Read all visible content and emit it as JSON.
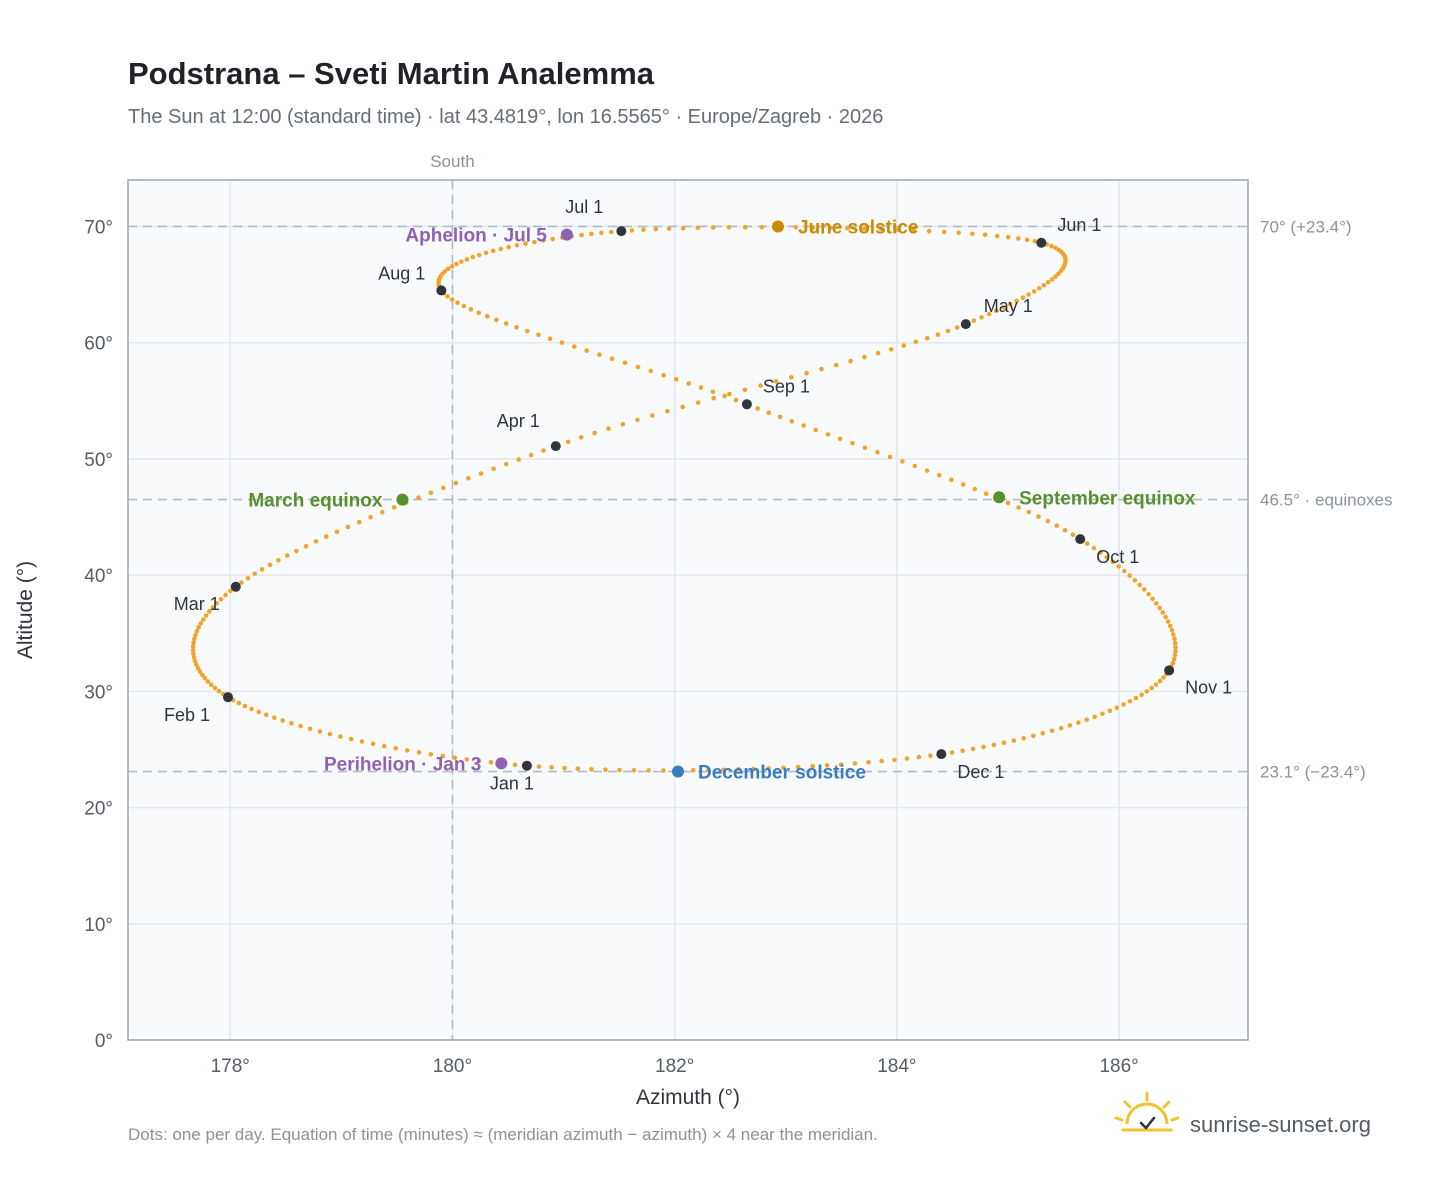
{
  "chart_data": {
    "type": "scatter",
    "title": "Podstrana – Sveti Martin Analemma",
    "subtitle": "The Sun at 12:00 (standard time) · lat 43.4819°, lon 16.5565° · Europe/Zagreb · 2026",
    "xlabel": "Azimuth (°)",
    "ylabel": "Altitude (°)",
    "xlim": [
      177.08,
      187.16
    ],
    "ylim": [
      0,
      74
    ],
    "xticks": [
      178,
      180,
      182,
      184,
      186
    ],
    "yticks": [
      0,
      10,
      20,
      30,
      40,
      50,
      60,
      70
    ],
    "x_tick_suffix": "°",
    "y_tick_suffix": "°",
    "grid": true,
    "meridian": {
      "azimuth": 180,
      "label": "South"
    },
    "reference_lines": [
      {
        "altitude": 70.0,
        "label": "70° (+23.4°)"
      },
      {
        "altitude": 46.5,
        "label": "46.5° · equinoxes"
      },
      {
        "altitude": 23.1,
        "label": "23.1° (−23.4°)"
      }
    ],
    "series": [
      {
        "points": [
          {
            "date": "Jan 1",
            "x": 180.67,
            "y": 23.6
          },
          {
            "date": "Feb 1",
            "x": 177.98,
            "y": 29.5
          },
          {
            "date": "Mar 1",
            "x": 178.05,
            "y": 39.0
          },
          {
            "date": "Apr 1",
            "x": 180.93,
            "y": 51.1
          },
          {
            "date": "May 1",
            "x": 184.62,
            "y": 61.6
          },
          {
            "date": "Jun 1",
            "x": 185.3,
            "y": 68.6
          },
          {
            "date": "Jul 1",
            "x": 181.52,
            "y": 69.6
          },
          {
            "date": "Aug 1",
            "x": 179.9,
            "y": 64.5
          },
          {
            "date": "Sep 1",
            "x": 182.65,
            "y": 54.7
          },
          {
            "date": "Oct 1",
            "x": 185.65,
            "y": 43.1
          },
          {
            "date": "Nov 1",
            "x": 186.45,
            "y": 31.8
          },
          {
            "date": "Dec 1",
            "x": 184.4,
            "y": 24.6
          }
        ]
      }
    ],
    "events": [
      {
        "label": "June solstice",
        "x": 182.93,
        "y": 70.0,
        "color": "#cc8a00"
      },
      {
        "label": "December solstice",
        "x": 182.03,
        "y": 23.1,
        "color": "#3a7bbf"
      },
      {
        "label": "March equinox",
        "x": 179.55,
        "y": 46.5,
        "color": "#5a8f2e"
      },
      {
        "label": "September equinox",
        "x": 184.92,
        "y": 46.7,
        "color": "#5a8f2e"
      },
      {
        "label": "Aphelion · Jul 5",
        "x": 181.03,
        "y": 69.3,
        "color": "#8e63b5"
      },
      {
        "label": "Perihelion · Jan 3",
        "x": 180.44,
        "y": 23.8,
        "color": "#8e63b5"
      }
    ],
    "curve_color": "#f2a32c",
    "month_marker_color": "#2f353b"
  },
  "footer": {
    "note": "Dots: one per day. Equation of time (minutes) ≈ (meridian azimuth − azimuth) × 4 near the meridian.",
    "brand": "sunrise-sunset.org",
    "brand_icon": "sun-check-icon"
  }
}
